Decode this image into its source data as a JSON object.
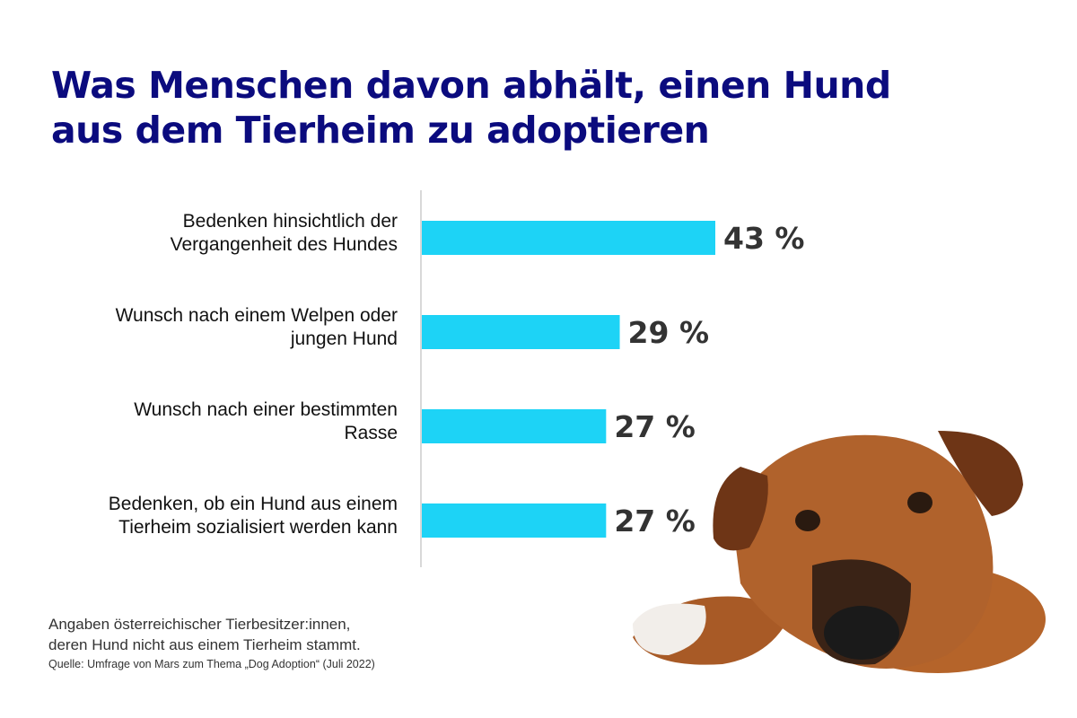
{
  "title_lines": [
    "Was Menschen davon abhält, einen Hund",
    "aus dem Tierheim zu adoptieren"
  ],
  "chart_data": {
    "type": "bar",
    "orientation": "horizontal",
    "title": "Was Menschen davon abhält, einen Hund aus dem Tierheim zu adoptieren",
    "categories": [
      [
        "Bedenken hinsichtlich der",
        "Vergangenheit des Hundes"
      ],
      [
        "Wunsch nach einem Welpen oder",
        "jungen Hund"
      ],
      [
        "Wunsch nach einer bestimmten",
        "Rasse"
      ],
      [
        "Bedenken, ob ein Hund aus einem",
        "Tierheim sozialisiert werden kann"
      ]
    ],
    "values": [
      43,
      29,
      27,
      27
    ],
    "value_labels": [
      "43 %",
      "29 %",
      "27 %",
      "27 %"
    ],
    "unit": "%",
    "xlim": [
      0,
      50
    ],
    "grid": false,
    "bar_color": "#1dd3f6"
  },
  "colors": {
    "title": "#0b0b7e",
    "bar": "#1dd3f6",
    "axis": "#cccccc"
  },
  "note": {
    "lines": [
      "Angaben österreichischer Tierbesitzer:innen,",
      "deren Hund nicht aus einem Tierheim stammt."
    ],
    "source": "Quelle: Umfrage von Mars zum Thema „Dog Adoption“ (Juli 2022)"
  },
  "image": "dog-photo"
}
